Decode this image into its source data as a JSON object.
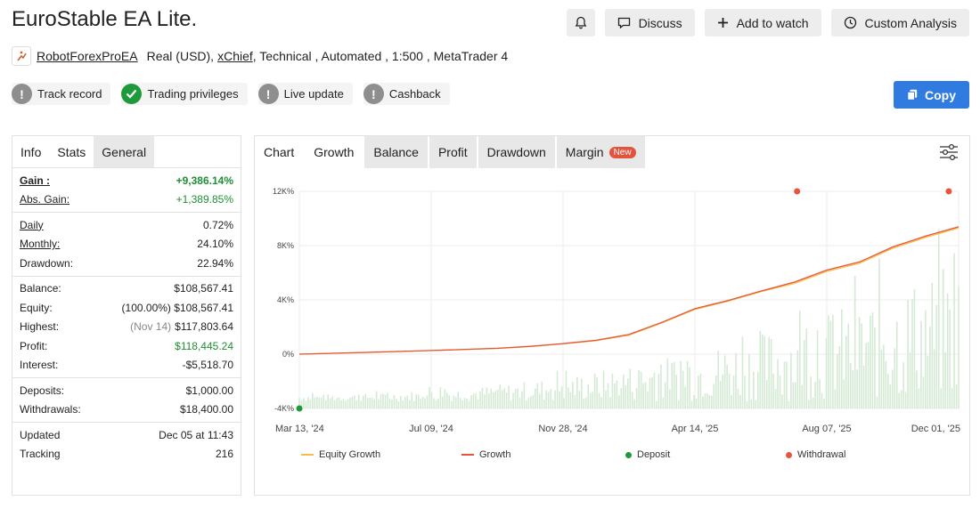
{
  "header": {
    "title": "EuroStable EA Lite.",
    "discuss_label": "Discuss",
    "watch_label": "Add to watch",
    "analysis_label": "Custom Analysis"
  },
  "subline": {
    "owner": "RobotForexProEA",
    "account": "Real (USD),",
    "broker": "xChief",
    "details": ", Technical , Automated , 1:500 , MetaTrader 4"
  },
  "badges": [
    {
      "label": "Track record",
      "status": "grey"
    },
    {
      "label": "Trading privileges",
      "status": "green"
    },
    {
      "label": "Live update",
      "status": "grey"
    },
    {
      "label": "Cashback",
      "status": "grey"
    }
  ],
  "copy_label": "Copy",
  "stats": {
    "tabs": [
      "Info",
      "Stats",
      "General"
    ],
    "gain_label": "Gain :",
    "gain": "+9,386.14%",
    "abs_gain_label": "Abs. Gain:",
    "abs_gain": "+1,389.85%",
    "daily_label": "Daily",
    "daily": "0.72%",
    "monthly_label": "Monthly:",
    "monthly": "24.10%",
    "drawdown_label": "Drawdown:",
    "drawdown": "22.94%",
    "balance_label": "Balance:",
    "balance": "$108,567.41",
    "equity_label": "Equity:",
    "equity_pct": "(100.00%)",
    "equity": "$108,567.41",
    "highest_label": "Highest:",
    "highest_date": "(Nov 14)",
    "highest": "$117,803.64",
    "profit_label": "Profit:",
    "profit": "$118,445.24",
    "interest_label": "Interest:",
    "interest": "-$5,518.70",
    "deposits_label": "Deposits:",
    "deposits": "$1,000.00",
    "withdrawals_label": "Withdrawals:",
    "withdrawals": "$18,400.00",
    "updated_label": "Updated",
    "updated": "Dec 05 at 11:43",
    "tracking_label": "Tracking",
    "tracking": "216"
  },
  "chart_tabs": [
    "Chart",
    "Growth",
    "Balance",
    "Profit",
    "Drawdown",
    "Margin"
  ],
  "new_badge": "New",
  "colors": {
    "growth": "#e8553c",
    "equity": "#f0c04a",
    "bars": "#cfe8cf",
    "deposit": "#1c9a3a",
    "withdrawal": "#e8553c"
  },
  "chart_data": {
    "type": "line",
    "x_ticks": [
      "Mar 13, '24",
      "Jul 09, '24",
      "Nov 28, '24",
      "Apr 14, '25",
      "Aug 07, '25",
      "Dec 01, '25"
    ],
    "y_ticks": [
      "12K%",
      "8K%",
      "4K%",
      "0%",
      "-4K%"
    ],
    "ylim": [
      -4000,
      12000
    ],
    "series": [
      {
        "name": "Equity Growth",
        "x_frac": [
          0,
          0.1,
          0.2,
          0.3,
          0.35,
          0.4,
          0.45,
          0.5,
          0.55,
          0.6,
          0.65,
          0.7,
          0.75,
          0.8,
          0.85,
          0.9,
          0.95,
          1.0
        ],
        "values": [
          0,
          120,
          260,
          420,
          560,
          760,
          1000,
          1400,
          2300,
          3300,
          3900,
          4600,
          5200,
          6100,
          6700,
          7800,
          8600,
          9300
        ]
      },
      {
        "name": "Growth",
        "x_frac": [
          0,
          0.1,
          0.2,
          0.3,
          0.35,
          0.4,
          0.45,
          0.5,
          0.55,
          0.6,
          0.65,
          0.7,
          0.75,
          0.8,
          0.85,
          0.9,
          0.95,
          1.0
        ],
        "values": [
          0,
          130,
          270,
          430,
          580,
          780,
          1020,
          1450,
          2350,
          3350,
          3950,
          4650,
          5300,
          6200,
          6800,
          7900,
          8700,
          9386
        ]
      }
    ],
    "deposits": [
      {
        "x_frac": 0.0,
        "value": -4000
      }
    ],
    "withdrawals": [
      {
        "x_frac": 0.755,
        "value": 12000
      },
      {
        "x_frac": 0.985,
        "value": 12000
      }
    ],
    "legend": [
      "Equity Growth",
      "Growth",
      "Deposit",
      "Withdrawal"
    ],
    "legend_position": "bottom"
  }
}
